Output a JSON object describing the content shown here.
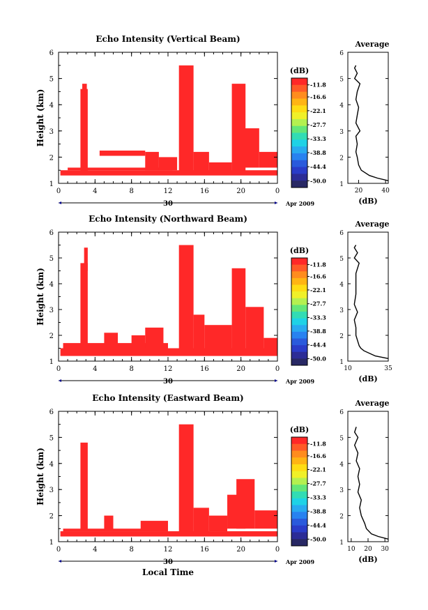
{
  "chart_data": [
    {
      "type": "heatmap",
      "title": "Echo Intensity (Vertical Beam)",
      "xlabel": "",
      "ylabel": "Height (km)",
      "x_ticks": [
        "0",
        "4",
        "8",
        "12",
        "16",
        "20",
        "0"
      ],
      "y_ticks": [
        "1",
        "2",
        "3",
        "4",
        "5",
        "6"
      ],
      "xlim": [
        0,
        24
      ],
      "ylim": [
        1,
        6
      ],
      "date_day": "30",
      "date_month": "Apr 2009",
      "colorbar": {
        "unit": "(dB)",
        "ticks": [
          "-11.8",
          "-16.6",
          "-22.1",
          "-27.7",
          "-33.3",
          "-38.8",
          "-44.4",
          "-50.0"
        ],
        "range": [
          -52.7,
          -9.1
        ]
      },
      "echo_regions": [
        {
          "x": [
            0.2,
            24
          ],
          "y": [
            1.3,
            1.5
          ]
        },
        {
          "x": [
            1.0,
            12.5
          ],
          "y": [
            1.5,
            1.6
          ]
        },
        {
          "x": [
            2.4,
            3.2
          ],
          "y": [
            1.4,
            4.6
          ]
        },
        {
          "x": [
            2.6,
            3.1
          ],
          "y": [
            4.0,
            4.8
          ]
        },
        {
          "x": [
            4.5,
            9.5
          ],
          "y": [
            2.05,
            2.25
          ]
        },
        {
          "x": [
            9.5,
            11.0
          ],
          "y": [
            1.5,
            2.2
          ]
        },
        {
          "x": [
            11.0,
            13.0
          ],
          "y": [
            1.5,
            2.0
          ]
        },
        {
          "x": [
            13.2,
            14.8
          ],
          "y": [
            1.4,
            5.5
          ]
        },
        {
          "x": [
            14.8,
            16.5
          ],
          "y": [
            1.4,
            2.2
          ]
        },
        {
          "x": [
            16.5,
            19.0
          ],
          "y": [
            1.4,
            1.8
          ]
        },
        {
          "x": [
            19.0,
            20.5
          ],
          "y": [
            1.4,
            4.8
          ]
        },
        {
          "x": [
            19.5,
            22.0
          ],
          "y": [
            1.6,
            3.1
          ]
        },
        {
          "x": [
            22.0,
            24.0
          ],
          "y": [
            1.6,
            2.2
          ]
        }
      ],
      "echo_value": -11.8,
      "average_panel": {
        "title": "Average",
        "xlabel": "(dB)",
        "x_ticks": [
          "20",
          "40"
        ],
        "xlim": [
          12,
          42
        ],
        "height": [
          1.1,
          1.2,
          1.3,
          1.5,
          1.7,
          2.0,
          2.2,
          2.5,
          2.8,
          3.0,
          3.3,
          3.6,
          3.9,
          4.2,
          4.5,
          4.8,
          5.0,
          5.2,
          5.4,
          5.5
        ],
        "value": [
          42,
          34,
          28,
          22,
          20,
          19,
          18,
          19,
          18,
          21,
          18,
          19,
          20,
          18,
          19,
          21,
          17,
          19,
          17,
          18
        ]
      }
    },
    {
      "type": "heatmap",
      "title": "Echo Intensity (Northward Beam)",
      "xlabel": "",
      "ylabel": "Height (km)",
      "x_ticks": [
        "0",
        "4",
        "8",
        "12",
        "16",
        "20",
        "0"
      ],
      "y_ticks": [
        "1",
        "2",
        "3",
        "4",
        "5",
        "6"
      ],
      "xlim": [
        0,
        24
      ],
      "ylim": [
        1,
        6
      ],
      "date_day": "30",
      "date_month": "Apr 2009",
      "colorbar": {
        "unit": "(dB)",
        "ticks": [
          "-11.8",
          "-16.6",
          "-22.1",
          "-27.7",
          "-33.3",
          "-38.8",
          "-44.4",
          "-50.0"
        ],
        "range": [
          -52.7,
          -9.1
        ]
      },
      "echo_regions": [
        {
          "x": [
            0.2,
            24
          ],
          "y": [
            1.2,
            1.5
          ]
        },
        {
          "x": [
            0.5,
            12.0
          ],
          "y": [
            1.5,
            1.7
          ]
        },
        {
          "x": [
            2.4,
            3.2
          ],
          "y": [
            1.4,
            4.8
          ]
        },
        {
          "x": [
            2.8,
            3.2
          ],
          "y": [
            4.5,
            5.4
          ]
        },
        {
          "x": [
            5.0,
            6.5
          ],
          "y": [
            1.5,
            2.1
          ]
        },
        {
          "x": [
            8.0,
            9.5
          ],
          "y": [
            1.5,
            2.0
          ]
        },
        {
          "x": [
            9.5,
            11.5
          ],
          "y": [
            1.5,
            2.3
          ]
        },
        {
          "x": [
            13.2,
            14.8
          ],
          "y": [
            1.3,
            5.5
          ]
        },
        {
          "x": [
            14.8,
            16.0
          ],
          "y": [
            1.5,
            2.8
          ]
        },
        {
          "x": [
            16.0,
            19.0
          ],
          "y": [
            1.4,
            2.4
          ]
        },
        {
          "x": [
            19.0,
            20.5
          ],
          "y": [
            1.5,
            4.6
          ]
        },
        {
          "x": [
            20.5,
            22.5
          ],
          "y": [
            1.5,
            3.1
          ]
        },
        {
          "x": [
            22.5,
            24.0
          ],
          "y": [
            1.5,
            1.9
          ]
        }
      ],
      "echo_value": -11.8,
      "average_panel": {
        "title": "Average",
        "xlabel": "(dB)",
        "x_ticks": [
          "10",
          "35"
        ],
        "xlim": [
          10,
          35
        ],
        "height": [
          1.1,
          1.2,
          1.4,
          1.5,
          1.6,
          1.8,
          2.0,
          2.3,
          2.6,
          2.9,
          3.2,
          3.6,
          4.0,
          4.4,
          4.8,
          5.0,
          5.2,
          5.4,
          5.5
        ],
        "value": [
          35,
          27,
          20,
          18,
          17,
          16,
          15,
          15,
          14,
          16,
          14,
          15,
          15,
          15,
          17,
          14,
          16,
          14,
          15
        ]
      }
    },
    {
      "type": "heatmap",
      "title": "Echo Intensity (Eastward Beam)",
      "xlabel": "Local Time",
      "ylabel": "Height (km)",
      "x_ticks": [
        "0",
        "4",
        "8",
        "12",
        "16",
        "20",
        "0"
      ],
      "y_ticks": [
        "1",
        "2",
        "3",
        "4",
        "5",
        "6"
      ],
      "xlim": [
        0,
        24
      ],
      "ylim": [
        1,
        6
      ],
      "date_day": "30",
      "date_month": "Apr 2009",
      "colorbar": {
        "unit": "(dB)",
        "ticks": [
          "-11.8",
          "-16.6",
          "-22.1",
          "-27.7",
          "-33.3",
          "-38.8",
          "-44.4",
          "-50.0"
        ],
        "range": [
          -52.7,
          -9.1
        ]
      },
      "echo_regions": [
        {
          "x": [
            0.2,
            24
          ],
          "y": [
            1.2,
            1.4
          ]
        },
        {
          "x": [
            0.5,
            12.0
          ],
          "y": [
            1.4,
            1.5
          ]
        },
        {
          "x": [
            2.4,
            3.2
          ],
          "y": [
            1.4,
            4.8
          ]
        },
        {
          "x": [
            5.0,
            6.0
          ],
          "y": [
            1.4,
            2.0
          ]
        },
        {
          "x": [
            9.0,
            12.0
          ],
          "y": [
            1.4,
            1.8
          ]
        },
        {
          "x": [
            13.2,
            14.8
          ],
          "y": [
            1.3,
            5.5
          ]
        },
        {
          "x": [
            14.8,
            16.5
          ],
          "y": [
            1.3,
            2.3
          ]
        },
        {
          "x": [
            16.5,
            18.5
          ],
          "y": [
            1.4,
            2.0
          ]
        },
        {
          "x": [
            18.5,
            20.5
          ],
          "y": [
            1.5,
            2.8
          ]
        },
        {
          "x": [
            19.5,
            21.5
          ],
          "y": [
            1.5,
            3.4
          ]
        },
        {
          "x": [
            21.5,
            24.0
          ],
          "y": [
            1.5,
            2.2
          ]
        }
      ],
      "echo_value": -11.8,
      "average_panel": {
        "title": "Average",
        "xlabel": "(dB)",
        "x_ticks": [
          "10",
          "20",
          "30"
        ],
        "xlim": [
          8,
          32
        ],
        "height": [
          1.1,
          1.2,
          1.3,
          1.5,
          1.7,
          2.0,
          2.3,
          2.6,
          2.9,
          3.2,
          3.5,
          3.8,
          4.1,
          4.4,
          4.7,
          5.0,
          5.2,
          5.4
        ],
        "value": [
          32,
          26,
          22,
          19,
          18,
          16,
          15,
          16,
          14,
          15,
          14,
          15,
          13,
          14,
          12,
          14,
          12,
          13
        ]
      }
    }
  ]
}
